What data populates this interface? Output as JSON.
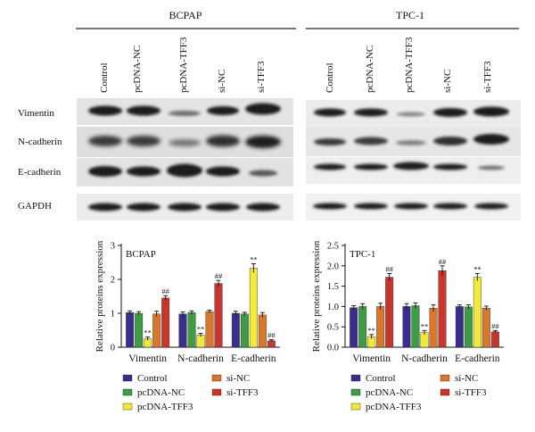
{
  "blot": {
    "panels": [
      {
        "title": "BCPAP",
        "lanes": [
          "Control",
          "pcDNA-NC",
          "pcDNA-TFF3",
          "si-NC",
          "si-TFF3"
        ]
      },
      {
        "title": "TPC-1",
        "lanes": [
          "Control",
          "pcDNA-NC",
          "pcDNA-TFF3",
          "si-NC",
          "si-TFF3"
        ]
      }
    ],
    "rows": [
      "Vimentin",
      "N-cadherin",
      "E-cadherin",
      "GAPDH"
    ]
  },
  "chart_data": [
    {
      "type": "bar",
      "title": "BCPAP",
      "ylabel": "Relative proteins expression",
      "xlabel": "",
      "categories": [
        "Vimentin",
        "N-cadherin",
        "E-cadherin"
      ],
      "ylim": [
        0,
        3
      ],
      "yticks": [
        0,
        1,
        2,
        3
      ],
      "series": [
        {
          "name": "Control",
          "color": "#3a2e8c",
          "values": [
            1.02,
            0.98,
            1.0
          ],
          "errors": [
            0.05,
            0.06,
            0.06
          ],
          "marks": [
            "",
            "",
            ""
          ]
        },
        {
          "name": "pcDNA-NC",
          "color": "#3f9b45",
          "values": [
            1.0,
            1.02,
            0.98
          ],
          "errors": [
            0.05,
            0.05,
            0.05
          ],
          "marks": [
            "",
            "",
            ""
          ]
        },
        {
          "name": "pcDNA-TFF3",
          "color": "#f2ea3a",
          "values": [
            0.25,
            0.36,
            2.33
          ],
          "errors": [
            0.05,
            0.05,
            0.13
          ],
          "marks": [
            "**",
            "**",
            "**"
          ]
        },
        {
          "name": "si-NC",
          "color": "#d9782d",
          "values": [
            0.98,
            1.05,
            0.95
          ],
          "errors": [
            0.08,
            0.04,
            0.07
          ],
          "marks": [
            "",
            "",
            ""
          ]
        },
        {
          "name": "si-TFF3",
          "color": "#c8372d",
          "values": [
            1.45,
            1.88,
            0.19
          ],
          "errors": [
            0.07,
            0.09,
            0.03
          ],
          "marks": [
            "##",
            "##",
            "##"
          ]
        }
      ]
    },
    {
      "type": "bar",
      "title": "TPC-1",
      "ylabel": "Relative proteins expression",
      "xlabel": "",
      "categories": [
        "Vimentin",
        "N-cadherin",
        "E-cadherin"
      ],
      "ylim": [
        0,
        2.5
      ],
      "yticks": [
        0.0,
        0.5,
        1.0,
        1.5,
        2.0,
        2.5
      ],
      "series": [
        {
          "name": "Control",
          "color": "#3a2e8c",
          "values": [
            0.97,
            1.0,
            1.0
          ],
          "errors": [
            0.05,
            0.07,
            0.04
          ],
          "marks": [
            "",
            "",
            ""
          ]
        },
        {
          "name": "pcDNA-NC",
          "color": "#3f9b45",
          "values": [
            1.0,
            1.02,
            0.99
          ],
          "errors": [
            0.07,
            0.07,
            0.05
          ],
          "marks": [
            "",
            "",
            ""
          ]
        },
        {
          "name": "pcDNA-TFF3",
          "color": "#f2ea3a",
          "values": [
            0.26,
            0.36,
            1.72
          ],
          "errors": [
            0.05,
            0.05,
            0.09
          ],
          "marks": [
            "**",
            "**",
            "**"
          ]
        },
        {
          "name": "si-NC",
          "color": "#d9782d",
          "values": [
            1.0,
            0.96,
            0.96
          ],
          "errors": [
            0.08,
            0.08,
            0.05
          ],
          "marks": [
            "",
            "",
            ""
          ]
        },
        {
          "name": "si-TFF3",
          "color": "#c8372d",
          "values": [
            1.72,
            1.88,
            0.38
          ],
          "errors": [
            0.09,
            0.12,
            0.03
          ],
          "marks": [
            "##",
            "##",
            "##"
          ]
        }
      ]
    }
  ]
}
